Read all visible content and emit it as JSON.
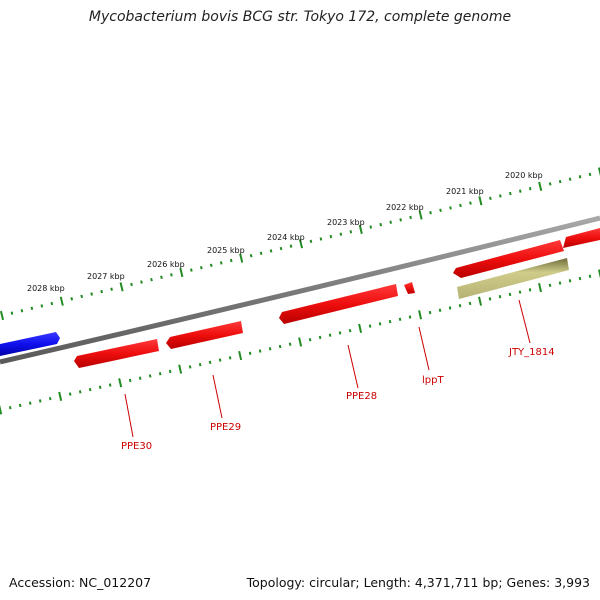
{
  "header": {
    "title": "Mycobacterium bovis BCG str. Tokyo 172, complete genome"
  },
  "footer": {
    "accession": "Accession: NC_012207",
    "summary": "Topology: circular; Length: 4,371,711 bp; Genes: 3,993"
  },
  "colors": {
    "backbone": "#808080",
    "tick": "#228b22",
    "feature_red": "#ee1111",
    "feature_blue": "#1a1aee",
    "feature_olive": "#b9b673",
    "label_red": "#cc0000"
  },
  "scale_labels": [
    "2020 kbp",
    "2021 kbp",
    "2022 kbp",
    "2023 kbp",
    "2024 kbp",
    "2025 kbp",
    "2026 kbp",
    "2027 kbp",
    "2028 kbp"
  ],
  "gene_labels": [
    "JTY_1814",
    "lppT",
    "PPE28",
    "PPE29",
    "PPE30"
  ]
}
